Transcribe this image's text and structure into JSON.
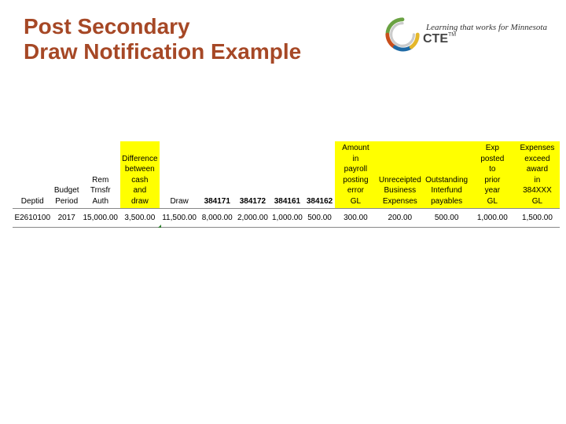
{
  "title": {
    "line1": "Post Secondary",
    "line2": "Draw Notification Example"
  },
  "branding": {
    "tagline": "Learning that works for Minnesota",
    "acronym": "CTE",
    "tm": "TM"
  },
  "table": {
    "type": "table",
    "highlight_color": "#ffff00",
    "title_color": "#a64826",
    "border_color": "#888888",
    "header_fontsize": 10,
    "cell_fontsize": 10,
    "columns": [
      {
        "label": "Deptid",
        "highlight": false,
        "bold": false,
        "width_pct": 5
      },
      {
        "label": "Budget Period",
        "highlight": false,
        "bold": false,
        "width_pct": 4.5
      },
      {
        "label": "Rem Trnsfr Auth",
        "highlight": false,
        "bold": false,
        "width_pct": 6
      },
      {
        "label": "Difference between cash and draw",
        "highlight": true,
        "bold": false,
        "width_pct": 7
      },
      {
        "label": "Draw",
        "highlight": false,
        "bold": false,
        "width_pct": 7
      },
      {
        "label": "384171",
        "highlight": false,
        "bold": true,
        "width_pct": 6.5
      },
      {
        "label": "384172",
        "highlight": false,
        "bold": true,
        "width_pct": 6
      },
      {
        "label": "384161",
        "highlight": false,
        "bold": true,
        "width_pct": 6
      },
      {
        "label": "384162",
        "highlight": false,
        "bold": true,
        "width_pct": 5
      },
      {
        "label": "Amount in payroll posting error GL",
        "highlight": true,
        "bold": false,
        "width_pct": 7.5
      },
      {
        "label": "Unreceipted Business Expenses",
        "highlight": true,
        "bold": false,
        "width_pct": 8
      },
      {
        "label": "Outstanding Interfund payables",
        "highlight": true,
        "bold": false,
        "width_pct": 8
      },
      {
        "label": "Exp posted to prior year GL",
        "highlight": true,
        "bold": false,
        "width_pct": 8
      },
      {
        "label": "Expenses exceed award in 384XXX GL",
        "highlight": true,
        "bold": false,
        "width_pct": 8
      }
    ],
    "row": {
      "c0": "E2610100",
      "c1": "2017",
      "c2": "15,000.00",
      "c3": "3,500.00",
      "c4": "11,500.00",
      "c5": "8,000.00",
      "c6": "2,000.00",
      "c7": "1,000.00",
      "c8": "500.00",
      "c9": "300.00",
      "c10": "200.00",
      "c11": "500.00",
      "c12": "1,000.00",
      "c13": "1,500.00"
    }
  }
}
